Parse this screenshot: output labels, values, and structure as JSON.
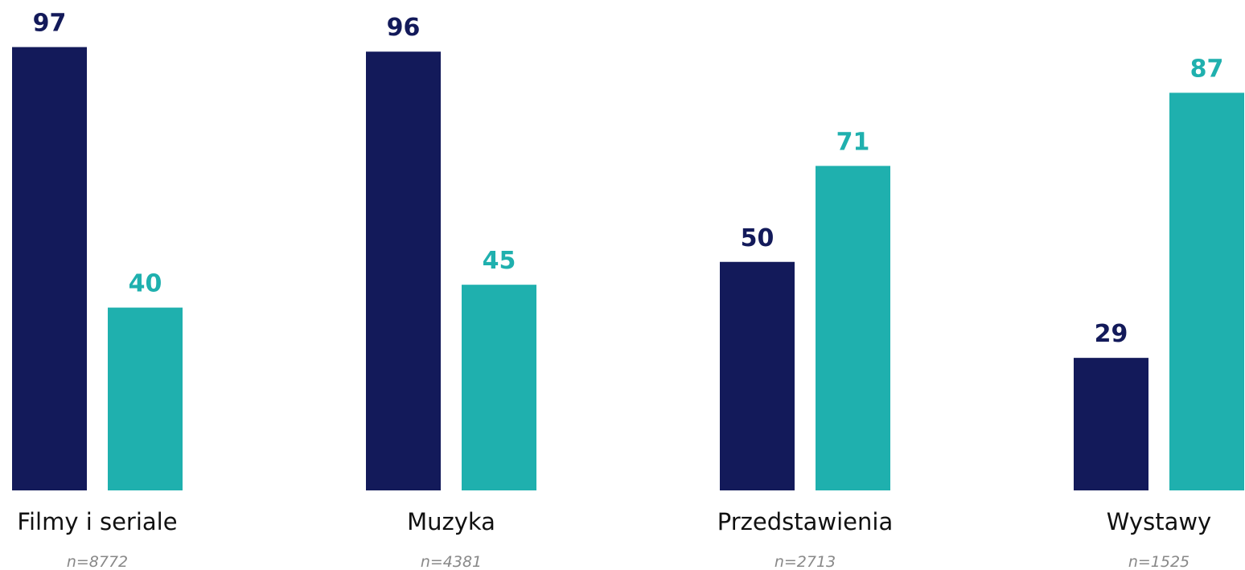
{
  "chart_data": {
    "type": "bar",
    "categories": [
      "Filmy i seriale",
      "Muzyka",
      "Przedstawienia",
      "Wystawy"
    ],
    "sample_sizes": [
      "n=8772",
      "n=4381",
      "n=2713",
      "n=1525"
    ],
    "series": [
      {
        "color": "#131a5a",
        "values": [
          97,
          96,
          50,
          29
        ]
      },
      {
        "color": "#1fb0ae",
        "values": [
          40,
          45,
          71,
          87
        ]
      }
    ],
    "ylim": [
      0,
      100
    ]
  }
}
